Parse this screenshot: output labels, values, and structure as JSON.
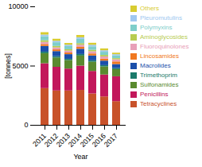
{
  "chart_data": {
    "type": "bar",
    "stacked": true,
    "xlabel": "Year",
    "ylabel": "[tonnes]",
    "categories": [
      "2011",
      "2012",
      "2013",
      "2014",
      "2015",
      "2016",
      "2017"
    ],
    "series": [
      {
        "name": "Tetracyclines",
        "color": "#c8522a",
        "values": [
          3100,
          2900,
          2900,
          2950,
          2650,
          2400,
          2000
        ]
      },
      {
        "name": "Penicillins",
        "color": "#c2185b",
        "values": [
          2100,
          2000,
          1850,
          2050,
          1900,
          1850,
          2100
        ]
      },
      {
        "name": "Sulfonamides",
        "color": "#5a8a2f",
        "values": [
          850,
          780,
          720,
          850,
          780,
          680,
          600
        ]
      },
      {
        "name": "Trimethoprim",
        "color": "#1a7a6a",
        "values": [
          130,
          115,
          105,
          130,
          115,
          110,
          90
        ]
      },
      {
        "name": "Macrolides",
        "color": "#1a4faa",
        "values": [
          480,
          430,
          390,
          440,
          410,
          380,
          340
        ]
      },
      {
        "name": "Lincosamides",
        "color": "#f07820",
        "values": [
          160,
          145,
          140,
          160,
          170,
          165,
          220
        ]
      },
      {
        "name": "Fluoroquinolones",
        "color": "#e8a0b8",
        "values": [
          180,
          165,
          160,
          180,
          185,
          190,
          185
        ]
      },
      {
        "name": "Aminoglycosides",
        "color": "#b8cc50",
        "values": [
          140,
          125,
          115,
          135,
          125,
          125,
          95
        ]
      },
      {
        "name": "Polymyxins",
        "color": "#7ececa",
        "values": [
          340,
          310,
          270,
          360,
          290,
          270,
          240
        ]
      },
      {
        "name": "Pleuromutulins",
        "color": "#a0c8f0",
        "values": [
          140,
          125,
          115,
          140,
          135,
          125,
          95
        ]
      },
      {
        "name": "Others",
        "color": "#d8cc30",
        "values": [
          200,
          170,
          145,
          190,
          165,
          155,
          125
        ]
      }
    ],
    "ylim": [
      0,
      10000
    ],
    "yticks": [
      0,
      5000,
      10000
    ],
    "grid": false,
    "legend": "right"
  }
}
